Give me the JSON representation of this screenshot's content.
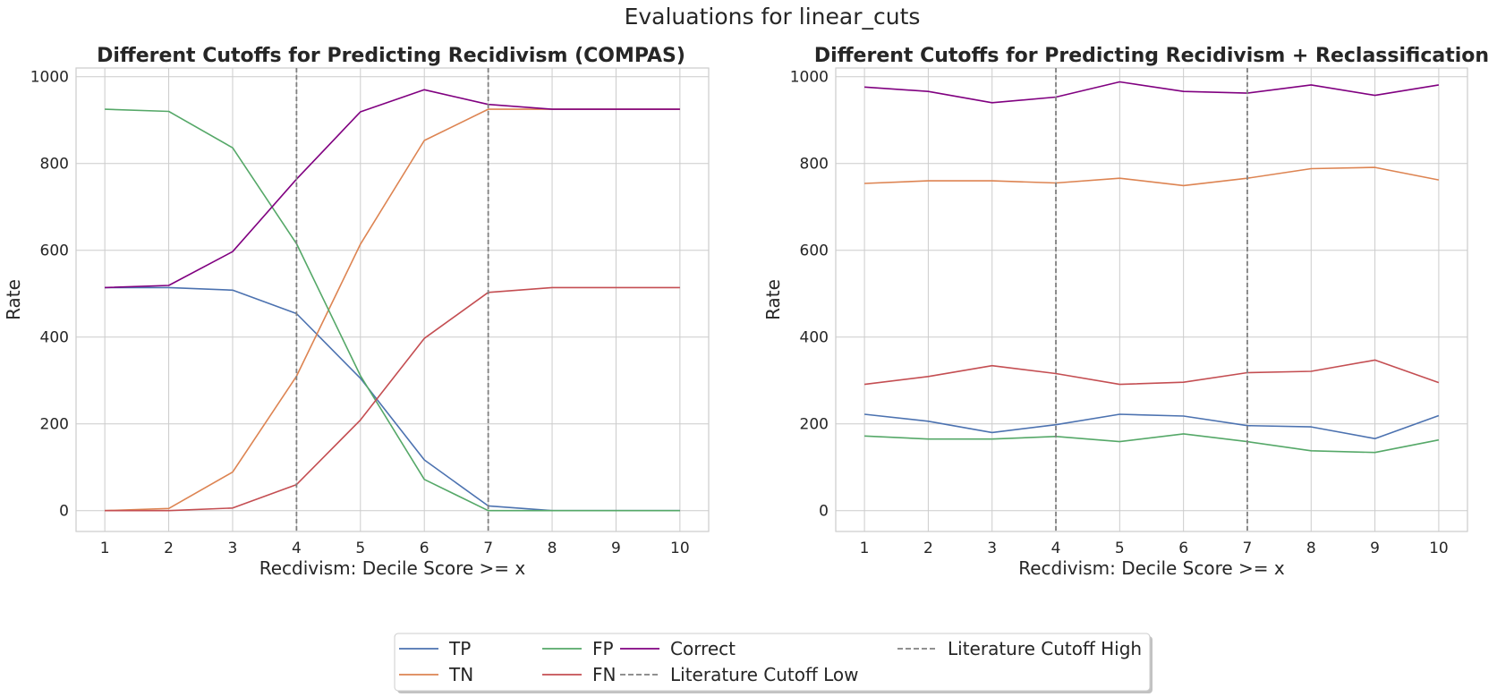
{
  "figure_title": "Evaluations for linear_cuts",
  "colors": {
    "TP": "#4c72b0",
    "TN": "#dd8452",
    "FP": "#55a868",
    "FN": "#c44e52",
    "Correct": "#800080",
    "cutoff": "#808080",
    "grid": "#cccccc",
    "spine": "#cccccc"
  },
  "legend": {
    "placement": "bottom-center",
    "entries": [
      {
        "key": "TP",
        "label": "TP",
        "style": "solid"
      },
      {
        "key": "TN",
        "label": "TN",
        "style": "solid"
      },
      {
        "key": "FP",
        "label": "FP",
        "style": "solid"
      },
      {
        "key": "FN",
        "label": "FN",
        "style": "solid"
      },
      {
        "key": "Correct",
        "label": "Correct",
        "style": "solid"
      },
      {
        "key": "cutoff",
        "label": "Literature Cutoff Low",
        "style": "dashed"
      },
      {
        "key": "cutoff",
        "label": "Literature Cutoff High",
        "style": "dashed"
      }
    ]
  },
  "chart_data": [
    {
      "type": "line",
      "title": "Different Cutoffs for Predicting Recidivism (COMPAS)",
      "xlabel": "Recdivism: Decile Score >= x",
      "ylabel": "Rate",
      "x": [
        1,
        2,
        3,
        4,
        5,
        6,
        7,
        8,
        9,
        10
      ],
      "xticks": [
        "1",
        "2",
        "3",
        "4",
        "5",
        "6",
        "7",
        "8",
        "9",
        "10"
      ],
      "yticks": [
        "0",
        "200",
        "400",
        "600",
        "800",
        "1000"
      ],
      "xlim": [
        0.55,
        10.45
      ],
      "ylim": [
        -48,
        1020
      ],
      "grid": true,
      "vlines": [
        4,
        7
      ],
      "series": [
        {
          "name": "TP",
          "values": [
            514,
            514,
            508,
            454,
            305,
            117,
            11,
            0,
            0,
            0
          ]
        },
        {
          "name": "TN",
          "values": [
            0,
            5,
            89,
            310,
            614,
            853,
            925,
            925,
            925,
            925
          ]
        },
        {
          "name": "FP",
          "values": [
            925,
            920,
            836,
            615,
            311,
            72,
            0,
            0,
            0,
            0
          ]
        },
        {
          "name": "FN",
          "values": [
            0,
            0,
            6,
            60,
            209,
            397,
            503,
            514,
            514,
            514
          ]
        },
        {
          "name": "Correct",
          "values": [
            514,
            519,
            597,
            764,
            919,
            970,
            936,
            925,
            925,
            925
          ]
        }
      ]
    },
    {
      "type": "line",
      "title": "Different Cutoffs for Predicting Recidivism + Reclassification",
      "xlabel": "Recdivism: Decile Score >= x",
      "ylabel": "Rate",
      "x": [
        1,
        2,
        3,
        4,
        5,
        6,
        7,
        8,
        9,
        10
      ],
      "xticks": [
        "1",
        "2",
        "3",
        "4",
        "5",
        "6",
        "7",
        "8",
        "9",
        "10"
      ],
      "yticks": [
        "0",
        "200",
        "400",
        "600",
        "800",
        "1000"
      ],
      "xlim": [
        0.55,
        10.45
      ],
      "ylim": [
        -48,
        1020
      ],
      "grid": true,
      "vlines": [
        4,
        7
      ],
      "series": [
        {
          "name": "TP",
          "values": [
            222,
            206,
            180,
            198,
            222,
            218,
            196,
            193,
            166,
            219
          ]
        },
        {
          "name": "TN",
          "values": [
            754,
            760,
            760,
            755,
            766,
            749,
            766,
            788,
            791,
            762
          ]
        },
        {
          "name": "FP",
          "values": [
            172,
            165,
            165,
            171,
            159,
            177,
            159,
            138,
            134,
            163
          ]
        },
        {
          "name": "FN",
          "values": [
            291,
            309,
            334,
            316,
            291,
            296,
            318,
            321,
            347,
            295
          ]
        },
        {
          "name": "Correct",
          "values": [
            976,
            966,
            940,
            953,
            988,
            966,
            962,
            981,
            957,
            981
          ]
        }
      ]
    }
  ]
}
